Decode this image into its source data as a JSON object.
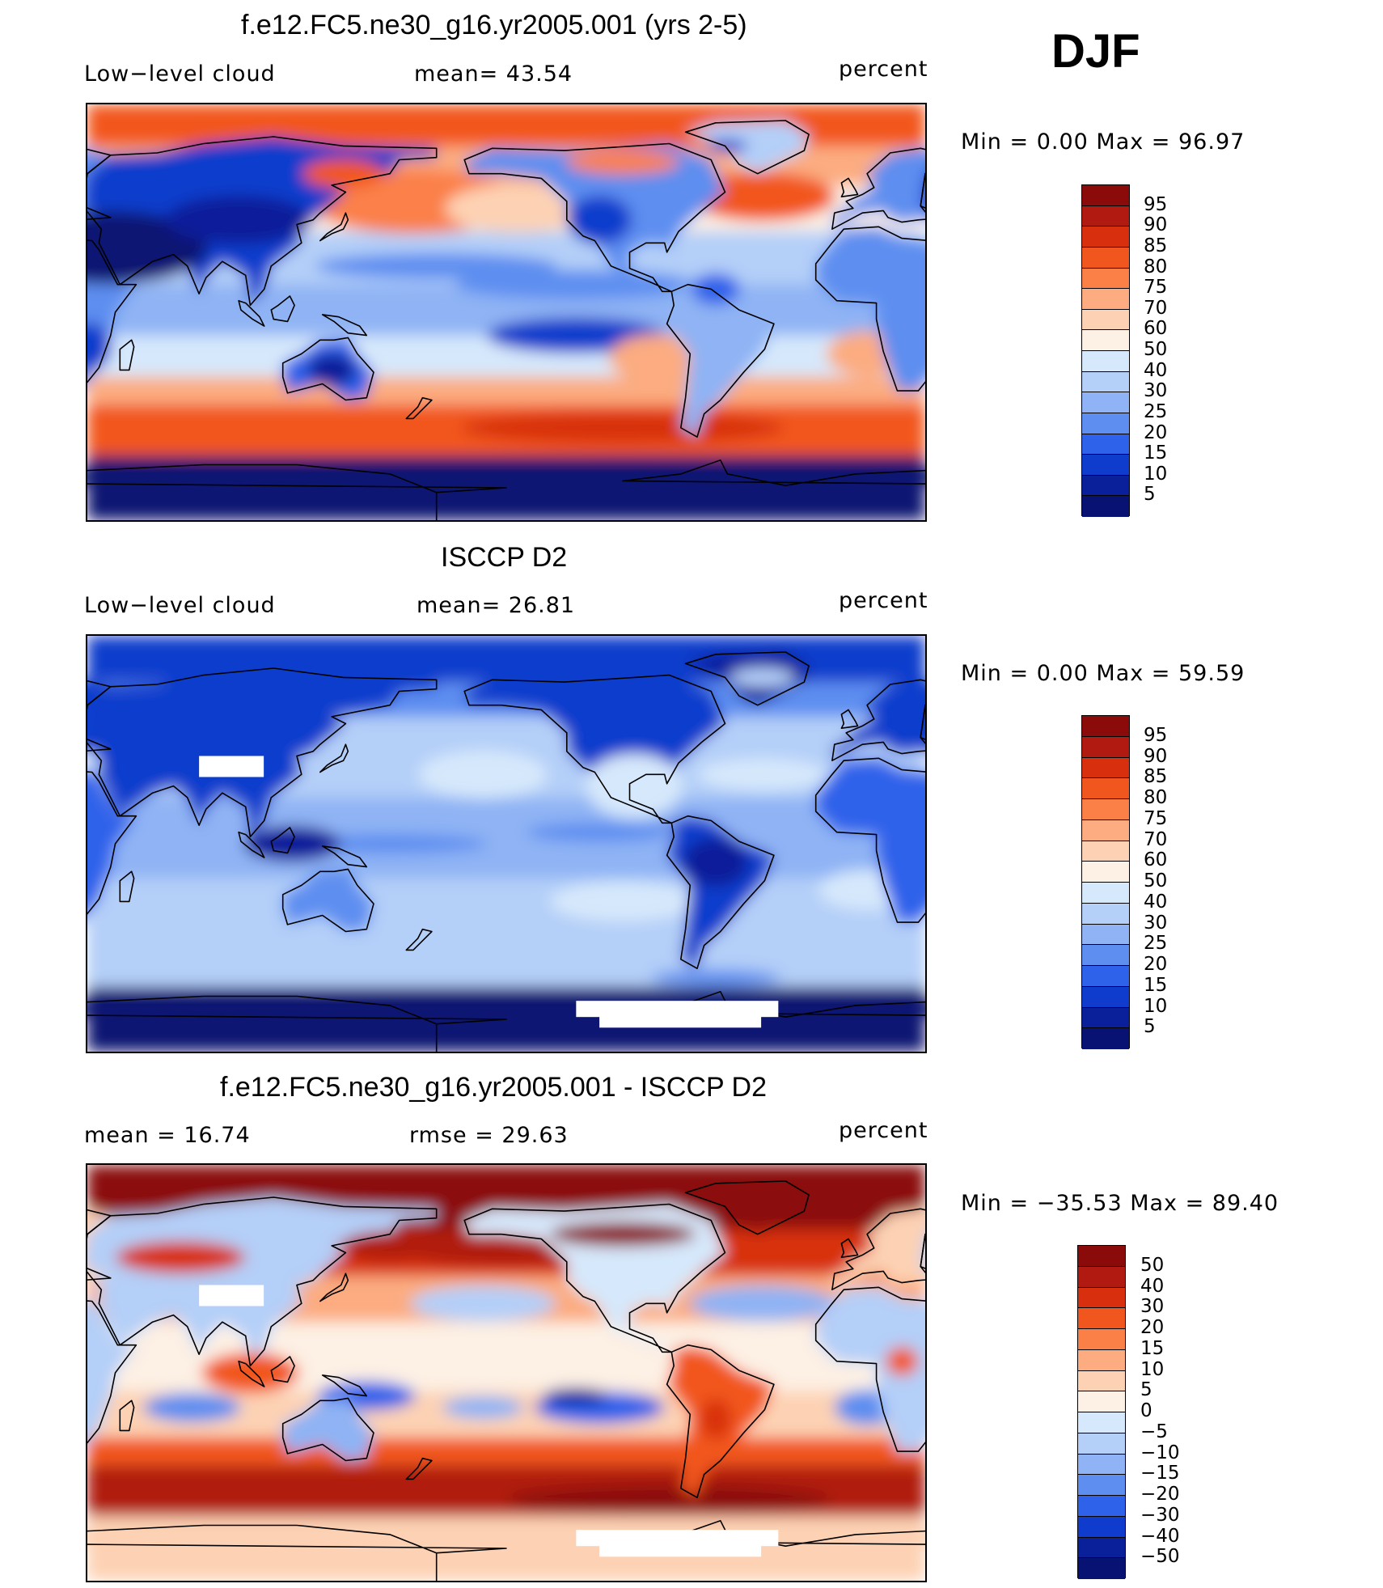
{
  "season": "DJF",
  "panels": [
    {
      "id": "model",
      "title": "f.e12.FC5.ne30_g16.yr2005.001 (yrs 2-5)",
      "left_label": "Low−level cloud",
      "center_label": "mean=   43.54",
      "right_label": "percent",
      "minmax": "Min  =     0.00  Max  =     96.97",
      "colorbar": {
        "colors": [
          "#8b0a0a",
          "#b01a10",
          "#d8300e",
          "#f2561f",
          "#fb8048",
          "#fcac80",
          "#fdd2b4",
          "#fdf0e4",
          "#d6e8fb",
          "#b4cff8",
          "#8fb3f4",
          "#5d8ef0",
          "#2f62ea",
          "#0f3ccc",
          "#0a1f9a",
          "#071272"
        ],
        "labels": [
          "95",
          "90",
          "85",
          "80",
          "75",
          "70",
          "60",
          "50",
          "40",
          "30",
          "25",
          "20",
          "15",
          "10",
          "5"
        ]
      },
      "map": {
        "description": "Low-level cloud fraction, model",
        "regime": "model"
      }
    },
    {
      "id": "obs",
      "title": "ISCCP D2",
      "left_label": "Low−level cloud",
      "center_label": "mean=   26.81",
      "right_label": "percent",
      "minmax": "Min  =     0.00  Max  =     59.59",
      "colorbar": {
        "colors": [
          "#8b0a0a",
          "#b01a10",
          "#d8300e",
          "#f2561f",
          "#fb8048",
          "#fcac80",
          "#fdd2b4",
          "#fdf0e4",
          "#d6e8fb",
          "#b4cff8",
          "#8fb3f4",
          "#5d8ef0",
          "#2f62ea",
          "#0f3ccc",
          "#0a1f9a",
          "#071272"
        ],
        "labels": [
          "95",
          "90",
          "85",
          "80",
          "75",
          "70",
          "60",
          "50",
          "40",
          "30",
          "25",
          "20",
          "15",
          "10",
          "5"
        ]
      },
      "map": {
        "description": "Low-level cloud fraction, observations",
        "regime": "obs"
      }
    },
    {
      "id": "diff",
      "title": "f.e12.FC5.ne30_g16.yr2005.001 - ISCCP D2",
      "left_label": "mean  =    16.74",
      "center_label": "rmse  =    29.63",
      "right_label": "percent",
      "minmax": "Min  = −35.53  Max  =    89.40",
      "colorbar": {
        "colors": [
          "#8b0a0a",
          "#b01a10",
          "#d8300e",
          "#f2561f",
          "#fb8048",
          "#fcac80",
          "#fdd2b4",
          "#fdf0e4",
          "#d6e8fb",
          "#b4cff8",
          "#8fb3f4",
          "#5d8ef0",
          "#2f62ea",
          "#0f3ccc",
          "#0a1f9a",
          "#071272"
        ],
        "labels": [
          "50",
          "40",
          "30",
          "20",
          "15",
          "10",
          "5",
          "0",
          "−5",
          "−10",
          "−15",
          "−20",
          "−30",
          "−40",
          "−50"
        ]
      },
      "map": {
        "description": "Difference field",
        "regime": "diff"
      }
    }
  ],
  "colors": {
    "continent_outline": "#000000",
    "missing": "#ffffff"
  }
}
